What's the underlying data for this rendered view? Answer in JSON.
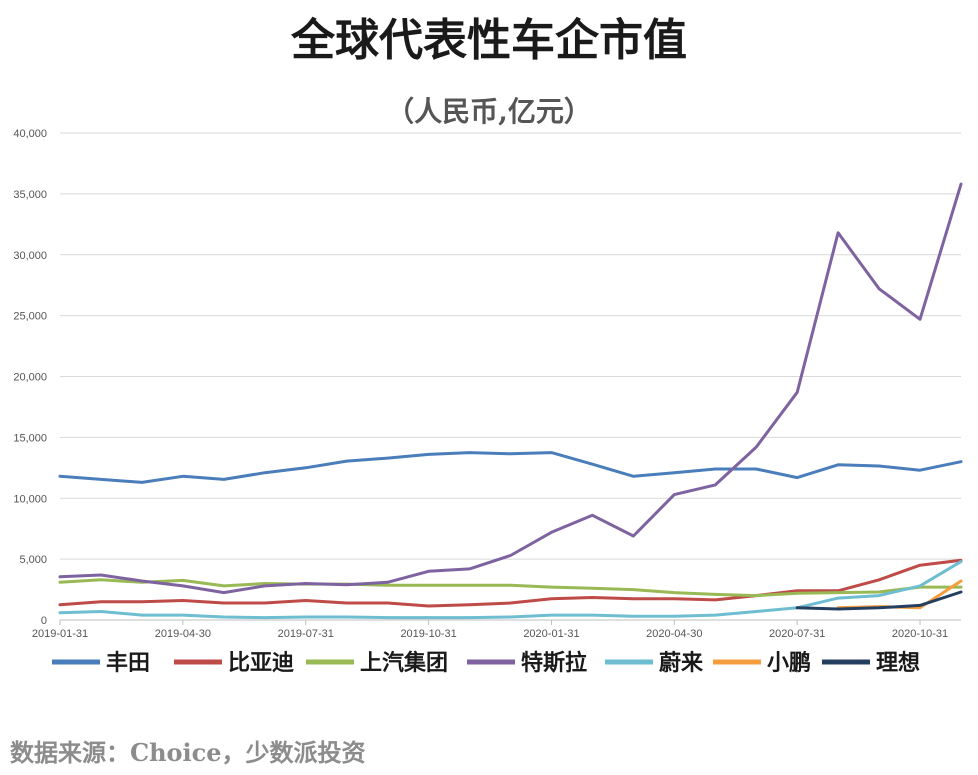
{
  "chart_data": {
    "type": "line",
    "title": "全球代表性车企市值",
    "subtitle": "（人民币,亿元）",
    "x": [
      "2019-01-31",
      "2019-02-28",
      "2019-03-31",
      "2019-04-30",
      "2019-05-31",
      "2019-06-30",
      "2019-07-31",
      "2019-08-31",
      "2019-09-30",
      "2019-10-31",
      "2019-11-30",
      "2019-12-31",
      "2020-01-31",
      "2020-02-29",
      "2020-03-31",
      "2020-04-30",
      "2020-05-31",
      "2020-06-30",
      "2020-07-31",
      "2020-08-31",
      "2020-09-30",
      "2020-10-31",
      "2020-11-30"
    ],
    "x_tick_labels": [
      "2019-01-31",
      "2019-04-30",
      "2019-07-31",
      "2019-10-31",
      "2020-01-31",
      "2020-04-30",
      "2020-07-31",
      "2020-10-31"
    ],
    "y_tick_labels": [
      "0",
      "5,000",
      "10,000",
      "15,000",
      "20,000",
      "25,000",
      "30,000",
      "35,000",
      "40,000"
    ],
    "ylim": [
      0,
      40000
    ],
    "grid": "horizontal",
    "legend_position": "bottom",
    "series": [
      {
        "name": "丰田",
        "color": "#4a7ebb",
        "values": [
          11800,
          11550,
          11300,
          11800,
          11550,
          12100,
          12500,
          13050,
          13300,
          13600,
          13750,
          13650,
          13750,
          12800,
          11800,
          12100,
          12400,
          12400,
          11700,
          12750,
          12650,
          12300,
          13000
        ]
      },
      {
        "name": "比亚迪",
        "color": "#be4b48",
        "values": [
          1250,
          1500,
          1500,
          1600,
          1400,
          1400,
          1600,
          1400,
          1400,
          1150,
          1250,
          1400,
          1750,
          1850,
          1750,
          1750,
          1650,
          2000,
          2400,
          2400,
          3300,
          4500,
          4900
        ]
      },
      {
        "name": "上汽集团",
        "color": "#98b954",
        "values": [
          3100,
          3300,
          3100,
          3250,
          2800,
          3000,
          2950,
          2950,
          2850,
          2850,
          2850,
          2850,
          2700,
          2600,
          2500,
          2250,
          2100,
          2000,
          2200,
          2250,
          2300,
          2700,
          2700
        ]
      },
      {
        "name": "特斯拉",
        "color": "#7e63a0",
        "values": [
          3550,
          3700,
          3200,
          2800,
          2250,
          2800,
          3000,
          2900,
          3100,
          4000,
          4200,
          5300,
          7200,
          8600,
          6900,
          10300,
          11100,
          14200,
          18700,
          31800,
          27200,
          24700,
          35800
        ]
      },
      {
        "name": "蔚来",
        "color": "#6ebdd1",
        "values": [
          600,
          700,
          400,
          400,
          250,
          200,
          250,
          250,
          200,
          200,
          200,
          250,
          400,
          400,
          300,
          300,
          400,
          700,
          1000,
          1800,
          2000,
          2800,
          4800
        ]
      },
      {
        "name": "小鹏",
        "color": "#f59d3d",
        "values": [
          null,
          null,
          null,
          null,
          null,
          null,
          null,
          null,
          null,
          null,
          null,
          null,
          null,
          null,
          null,
          null,
          null,
          null,
          null,
          1000,
          1100,
          1000,
          3200
        ]
      },
      {
        "name": "理想",
        "color": "#253f60",
        "values": [
          null,
          null,
          null,
          null,
          null,
          null,
          null,
          null,
          null,
          null,
          null,
          null,
          null,
          null,
          null,
          null,
          null,
          null,
          1000,
          900,
          1000,
          1200,
          2300
        ]
      }
    ]
  },
  "source_note": "数据来源：Choice，少数派投资"
}
